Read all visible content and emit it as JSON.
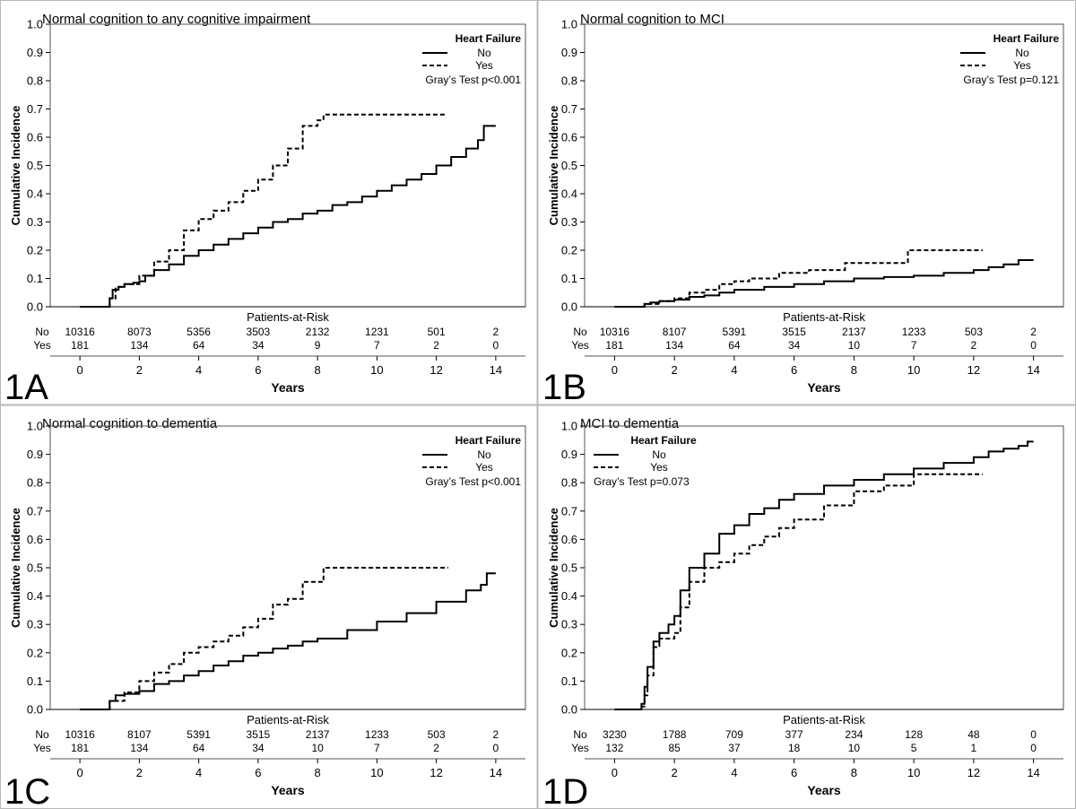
{
  "figure": {
    "y_axis_label": "Cumulative Incidence",
    "x_axis_label": "Years",
    "risk_header": "Patients-at-Risk",
    "risk_row_labels": [
      "No",
      "Yes"
    ],
    "legend_title": "Heart Failure",
    "legend_labels": [
      "No",
      "Yes"
    ]
  },
  "chart_data": [
    {
      "panel_label": "1A",
      "type": "line",
      "title": "Normal cognition to any cognitive impairment",
      "xlabel": "Years",
      "ylabel": "Cumulative Incidence",
      "xlim": [
        -1,
        15
      ],
      "ylim": [
        0,
        1
      ],
      "xticks": [
        0,
        2,
        4,
        6,
        8,
        10,
        12,
        14
      ],
      "yticks": [
        0,
        0.1,
        0.2,
        0.3,
        0.4,
        0.5,
        0.6,
        0.7,
        0.8,
        0.9,
        1.0
      ],
      "legend": {
        "title": "Heart Failure",
        "entries": [
          "No",
          "Yes"
        ],
        "position": "top-right",
        "test": "Gray’s Test p<0.001"
      },
      "series": [
        {
          "name": "No",
          "style": "solid",
          "x": [
            0,
            0.9,
            1.0,
            1.1,
            1.3,
            1.5,
            1.8,
            2.0,
            2.2,
            2.5,
            3.0,
            3.5,
            4.0,
            4.5,
            5.0,
            5.5,
            6.0,
            6.5,
            7.0,
            7.5,
            8.0,
            8.5,
            9.0,
            9.5,
            10.0,
            10.5,
            11.0,
            11.5,
            12.0,
            12.5,
            13.0,
            13.4,
            13.6,
            14.0
          ],
          "y": [
            0,
            0,
            0.03,
            0.06,
            0.07,
            0.08,
            0.085,
            0.09,
            0.11,
            0.13,
            0.15,
            0.18,
            0.2,
            0.22,
            0.24,
            0.26,
            0.28,
            0.3,
            0.31,
            0.33,
            0.34,
            0.36,
            0.37,
            0.39,
            0.41,
            0.43,
            0.45,
            0.47,
            0.5,
            0.53,
            0.56,
            0.59,
            0.64,
            0.64
          ]
        },
        {
          "name": "Yes",
          "style": "dashed",
          "x": [
            0,
            0.9,
            1.0,
            1.2,
            1.5,
            2.0,
            2.5,
            3.0,
            3.5,
            4.0,
            4.5,
            5.0,
            5.5,
            6.0,
            6.5,
            7.0,
            7.5,
            8.0,
            8.2,
            10.0,
            12.3
          ],
          "y": [
            0,
            0,
            0.03,
            0.07,
            0.08,
            0.11,
            0.16,
            0.2,
            0.27,
            0.31,
            0.34,
            0.37,
            0.41,
            0.45,
            0.5,
            0.56,
            0.64,
            0.66,
            0.68,
            0.68,
            0.68
          ]
        }
      ],
      "risk_table": {
        "times": [
          0,
          2,
          4,
          6,
          8,
          10,
          12,
          14
        ],
        "No": [
          "10316",
          "8073",
          "5356",
          "3503",
          "2132",
          "1231",
          "501",
          "2"
        ],
        "Yes": [
          "181",
          "134",
          "64",
          "34",
          "9",
          "7",
          "2",
          "0"
        ]
      }
    },
    {
      "panel_label": "1B",
      "type": "line",
      "title": "Normal cognition to MCI",
      "xlabel": "Years",
      "ylabel": "Cumulative Incidence",
      "xlim": [
        -1,
        15
      ],
      "ylim": [
        0,
        1
      ],
      "xticks": [
        0,
        2,
        4,
        6,
        8,
        10,
        12,
        14
      ],
      "yticks": [
        0,
        0.1,
        0.2,
        0.3,
        0.4,
        0.5,
        0.6,
        0.7,
        0.8,
        0.9,
        1.0
      ],
      "legend": {
        "title": "Heart Failure",
        "entries": [
          "No",
          "Yes"
        ],
        "position": "top-right",
        "test": "Gray’s Test p=0.121"
      },
      "series": [
        {
          "name": "No",
          "style": "solid",
          "x": [
            0,
            0.9,
            1.0,
            1.2,
            1.5,
            2.0,
            2.5,
            3.0,
            3.5,
            4.0,
            5.0,
            6.0,
            7.0,
            8.0,
            9.0,
            10.0,
            11.0,
            12.0,
            12.5,
            13.0,
            13.5,
            14.0
          ],
          "y": [
            0,
            0,
            0.01,
            0.015,
            0.02,
            0.025,
            0.035,
            0.04,
            0.05,
            0.06,
            0.07,
            0.08,
            0.09,
            0.1,
            0.105,
            0.11,
            0.12,
            0.13,
            0.14,
            0.15,
            0.165,
            0.165
          ]
        },
        {
          "name": "Yes",
          "style": "dashed",
          "x": [
            0,
            0.9,
            1.0,
            1.5,
            2.0,
            2.5,
            3.0,
            3.5,
            4.0,
            4.5,
            5.5,
            6.5,
            7.7,
            9.5,
            9.8,
            12.3
          ],
          "y": [
            0,
            0,
            0.01,
            0.02,
            0.03,
            0.05,
            0.06,
            0.08,
            0.09,
            0.1,
            0.12,
            0.13,
            0.155,
            0.155,
            0.2,
            0.2
          ]
        }
      ],
      "risk_table": {
        "times": [
          0,
          2,
          4,
          6,
          8,
          10,
          12,
          14
        ],
        "No": [
          "10316",
          "8107",
          "5391",
          "3515",
          "2137",
          "1233",
          "503",
          "2"
        ],
        "Yes": [
          "181",
          "134",
          "64",
          "34",
          "10",
          "7",
          "2",
          "0"
        ]
      }
    },
    {
      "panel_label": "1C",
      "type": "line",
      "title": "Normal cognition to dementia",
      "xlabel": "Years",
      "ylabel": "Cumulative Incidence",
      "xlim": [
        -1,
        15
      ],
      "ylim": [
        0,
        1
      ],
      "xticks": [
        0,
        2,
        4,
        6,
        8,
        10,
        12,
        14
      ],
      "yticks": [
        0,
        0.1,
        0.2,
        0.3,
        0.4,
        0.5,
        0.6,
        0.7,
        0.8,
        0.9,
        1.0
      ],
      "legend": {
        "title": "Heart Failure",
        "entries": [
          "No",
          "Yes"
        ],
        "position": "top-right",
        "test": "Gray’s Test p<0.001"
      },
      "series": [
        {
          "name": "No",
          "style": "solid",
          "x": [
            0,
            0.9,
            1.0,
            1.2,
            1.5,
            2.0,
            2.5,
            3.0,
            3.5,
            4.0,
            4.5,
            5.0,
            5.5,
            6.0,
            6.5,
            7.0,
            7.5,
            8.0,
            9.0,
            10.0,
            11.0,
            12.0,
            13.0,
            13.5,
            13.7,
            14.0
          ],
          "y": [
            0,
            0,
            0.03,
            0.05,
            0.055,
            0.065,
            0.09,
            0.1,
            0.12,
            0.135,
            0.155,
            0.17,
            0.19,
            0.2,
            0.215,
            0.225,
            0.24,
            0.25,
            0.28,
            0.31,
            0.34,
            0.38,
            0.42,
            0.44,
            0.48,
            0.48
          ]
        },
        {
          "name": "Yes",
          "style": "dashed",
          "x": [
            0,
            0.9,
            1.0,
            1.5,
            2.0,
            2.5,
            3.0,
            3.5,
            4.0,
            4.5,
            5.0,
            5.5,
            6.0,
            6.5,
            7.0,
            7.5,
            8.2,
            10.0,
            12.4
          ],
          "y": [
            0,
            0,
            0.03,
            0.06,
            0.1,
            0.13,
            0.16,
            0.2,
            0.22,
            0.24,
            0.26,
            0.29,
            0.32,
            0.37,
            0.39,
            0.45,
            0.5,
            0.5,
            0.5
          ]
        }
      ],
      "risk_table": {
        "times": [
          0,
          2,
          4,
          6,
          8,
          10,
          12,
          14
        ],
        "No": [
          "10316",
          "8107",
          "5391",
          "3515",
          "2137",
          "1233",
          "503",
          "2"
        ],
        "Yes": [
          "181",
          "134",
          "64",
          "34",
          "10",
          "7",
          "2",
          "0"
        ]
      }
    },
    {
      "panel_label": "1D",
      "type": "line",
      "title": "MCI to dementia",
      "xlabel": "Years",
      "ylabel": "Cumulative Incidence",
      "xlim": [
        -1,
        15
      ],
      "ylim": [
        0,
        1
      ],
      "xticks": [
        0,
        2,
        4,
        6,
        8,
        10,
        12,
        14
      ],
      "yticks": [
        0,
        0.1,
        0.2,
        0.3,
        0.4,
        0.5,
        0.6,
        0.7,
        0.8,
        0.9,
        1.0
      ],
      "legend": {
        "title": "Heart Failure",
        "entries": [
          "No",
          "Yes"
        ],
        "position": "top-left",
        "test": "Gray’s Test p=0.073"
      },
      "series": [
        {
          "name": "No",
          "style": "solid",
          "x": [
            0,
            0.8,
            0.9,
            1.0,
            1.1,
            1.3,
            1.5,
            1.8,
            2.0,
            2.2,
            2.5,
            3.0,
            3.5,
            4.0,
            4.5,
            5.0,
            5.5,
            6.0,
            7.0,
            8.0,
            9.0,
            10.0,
            11.0,
            12.0,
            12.5,
            13.0,
            13.5,
            13.8,
            14.0
          ],
          "y": [
            0,
            0,
            0.02,
            0.08,
            0.15,
            0.24,
            0.27,
            0.3,
            0.33,
            0.42,
            0.5,
            0.55,
            0.62,
            0.65,
            0.69,
            0.71,
            0.74,
            0.76,
            0.79,
            0.81,
            0.83,
            0.85,
            0.87,
            0.89,
            0.91,
            0.92,
            0.93,
            0.945,
            0.945
          ]
        },
        {
          "name": "Yes",
          "style": "dashed",
          "x": [
            0,
            0.8,
            0.9,
            1.0,
            1.1,
            1.3,
            1.5,
            1.8,
            2.0,
            2.2,
            2.5,
            3.0,
            3.5,
            4.0,
            4.5,
            5.0,
            5.5,
            6.0,
            7.0,
            8.0,
            9.0,
            10.0,
            12.3
          ],
          "y": [
            0,
            0,
            0.01,
            0.05,
            0.12,
            0.22,
            0.25,
            0.25,
            0.27,
            0.36,
            0.45,
            0.5,
            0.52,
            0.55,
            0.58,
            0.61,
            0.64,
            0.67,
            0.72,
            0.77,
            0.79,
            0.83,
            0.83
          ]
        }
      ],
      "risk_table": {
        "times": [
          0,
          2,
          4,
          6,
          8,
          10,
          12,
          14
        ],
        "No": [
          "3230",
          "1788",
          "709",
          "377",
          "234",
          "128",
          "48",
          "0"
        ],
        "Yes": [
          "132",
          "85",
          "37",
          "18",
          "10",
          "5",
          "1",
          "0"
        ]
      }
    }
  ]
}
